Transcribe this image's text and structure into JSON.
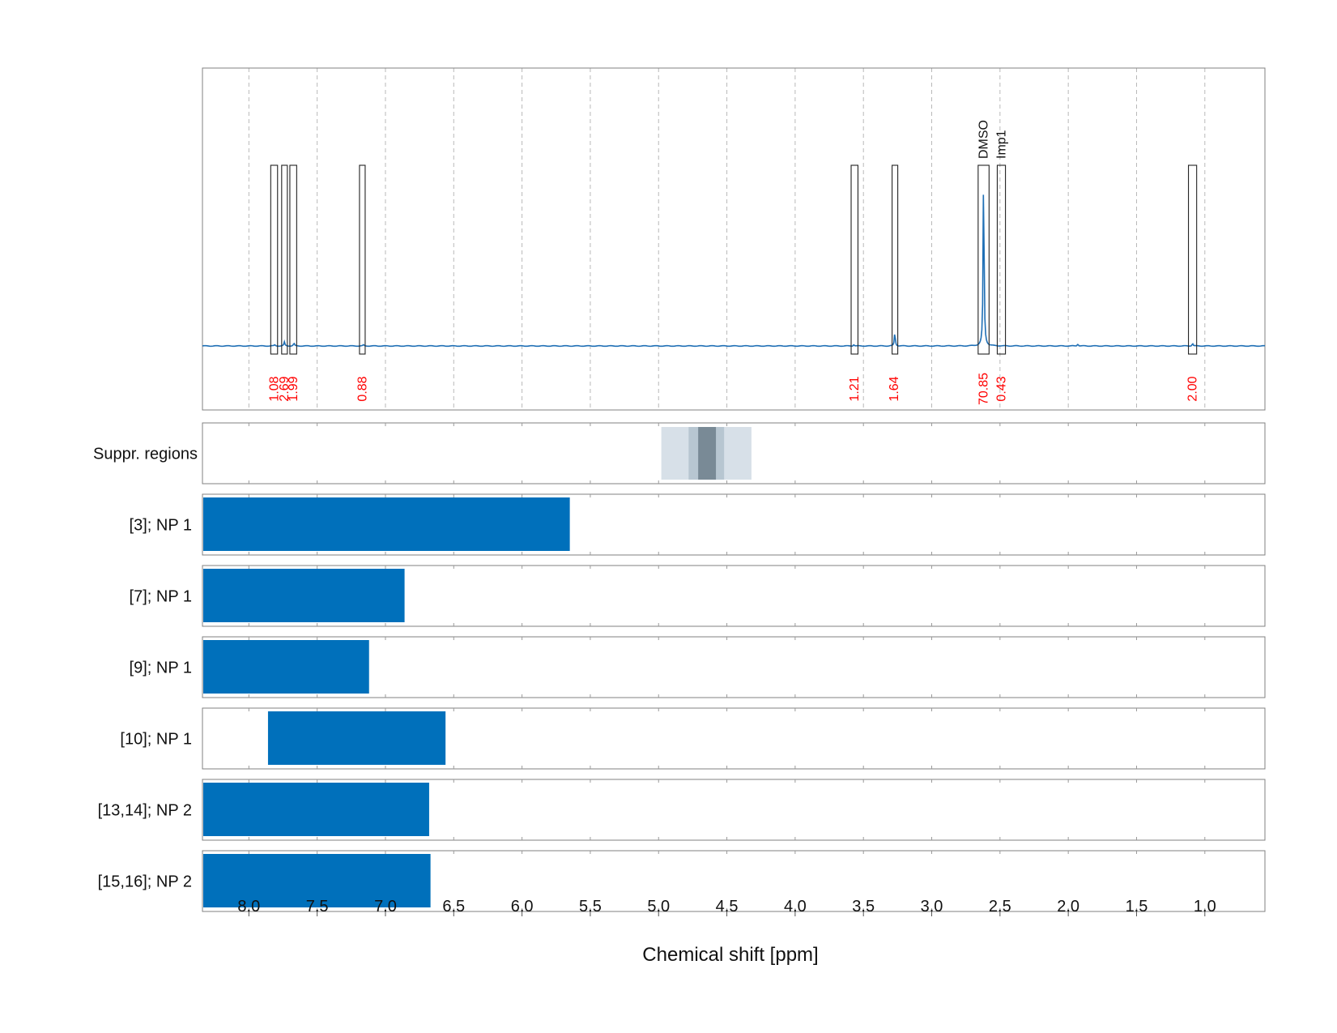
{
  "chart_data": {
    "type": "line",
    "x_axis": {
      "label": "Chemical shift [ppm]",
      "range": [
        8.34,
        0.56
      ],
      "reversed": true,
      "ticks": [
        "8.0",
        "7.5",
        "7.0",
        "6.5",
        "6.0",
        "5.5",
        "5.0",
        "4.5",
        "4.0",
        "3.5",
        "3.0",
        "2.5",
        "2.0",
        "1.5",
        "1.0"
      ],
      "grid": true
    },
    "spectrum": {
      "color": "#1f6fb5",
      "baseline": 0.0,
      "peaks": [
        {
          "ppm": 7.81,
          "height": 0.006
        },
        {
          "ppm": 7.74,
          "height": 0.02
        },
        {
          "ppm": 7.67,
          "height": 0.015
        },
        {
          "ppm": 7.16,
          "height": 0.006
        },
        {
          "ppm": 3.57,
          "height": 0.008
        },
        {
          "ppm": 3.27,
          "height": 0.07
        },
        {
          "ppm": 2.62,
          "height": 0.9
        },
        {
          "ppm": 1.93,
          "height": 0.012
        },
        {
          "ppm": 1.09,
          "height": 0.014
        }
      ]
    },
    "integration_regions": [
      {
        "start": 7.84,
        "end": 7.79,
        "value": "1.08",
        "label": ""
      },
      {
        "start": 7.76,
        "end": 7.72,
        "value": "2.69",
        "label": ""
      },
      {
        "start": 7.7,
        "end": 7.65,
        "value": "1.99",
        "label": ""
      },
      {
        "start": 7.19,
        "end": 7.15,
        "value": "0.88",
        "label": ""
      },
      {
        "start": 3.59,
        "end": 3.54,
        "value": "1.21",
        "label": ""
      },
      {
        "start": 3.29,
        "end": 3.26,
        "value": "1.64",
        "label": ""
      },
      {
        "start": 2.66,
        "end": 2.58,
        "value": "70.85",
        "label": "DMSO"
      },
      {
        "start": 2.52,
        "end": 2.46,
        "value": "0.43",
        "label": "Imp1"
      },
      {
        "start": 1.12,
        "end": 1.06,
        "value": "2.00",
        "label": ""
      }
    ],
    "suppression_panel": {
      "label": "Suppr. regions",
      "bands": [
        {
          "start": 4.98,
          "end": 4.32,
          "color": "#d7e0e8"
        },
        {
          "start": 4.78,
          "end": 4.52,
          "color": "#b7c6d1"
        },
        {
          "start": 4.71,
          "end": 4.58,
          "color": "#798a96"
        }
      ]
    },
    "assignment_rows": [
      {
        "label": "[3]; NP 1",
        "start": 8.34,
        "end": 5.65,
        "color": "#0070bb"
      },
      {
        "label": "[7]; NP 1",
        "start": 8.34,
        "end": 6.86,
        "color": "#0070bb"
      },
      {
        "label": "[9]; NP 1",
        "start": 8.34,
        "end": 7.12,
        "color": "#0070bb"
      },
      {
        "label": "[10]; NP 1",
        "start": 7.86,
        "end": 6.56,
        "color": "#0070bb"
      },
      {
        "label": "[13,14]; NP 2",
        "start": 8.34,
        "end": 6.68,
        "color": "#0070bb"
      },
      {
        "label": "[15,16]; NP 2",
        "start": 8.34,
        "end": 6.67,
        "color": "#0070bb"
      }
    ]
  }
}
